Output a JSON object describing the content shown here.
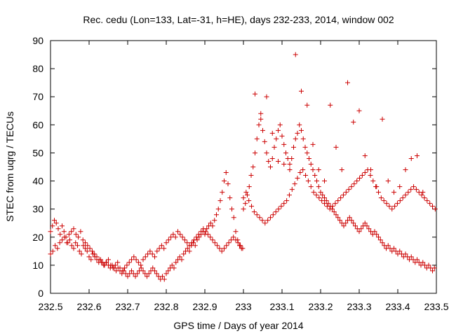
{
  "chart_data": {
    "type": "scatter",
    "title": "Rec. cedu (Lon=133, Lat=-31, h=HE), days 232-233, 2014, window 002",
    "xlabel": "GPS time / Days of year 2014",
    "ylabel": "STEC from uqrg / TECUs",
    "xlim": [
      232.5,
      233.5
    ],
    "ylim": [
      0,
      90
    ],
    "xticks": [
      "232.5",
      "232.6",
      "232.7",
      "232.8",
      "232.9",
      "233",
      "233.1",
      "233.2",
      "233.3",
      "233.4",
      "233.5"
    ],
    "yticks": [
      "0",
      "10",
      "20",
      "30",
      "40",
      "50",
      "60",
      "70",
      "80",
      "90"
    ],
    "grid": false,
    "legend": "none",
    "marker": "+",
    "color": "#cc0000",
    "x": [
      232.5,
      232.505,
      232.51,
      232.515,
      232.52,
      232.525,
      232.53,
      232.535,
      232.54,
      232.545,
      232.55,
      232.555,
      232.56,
      232.565,
      232.57,
      232.575,
      232.58,
      232.585,
      232.59,
      232.595,
      232.6,
      232.605,
      232.61,
      232.615,
      232.62,
      232.625,
      232.63,
      232.635,
      232.64,
      232.645,
      232.65,
      232.655,
      232.66,
      232.665,
      232.67,
      232.675,
      232.68,
      232.685,
      232.69,
      232.695,
      232.7,
      232.705,
      232.71,
      232.715,
      232.72,
      232.725,
      232.73,
      232.735,
      232.74,
      232.745,
      232.75,
      232.755,
      232.76,
      232.765,
      232.77,
      232.775,
      232.78,
      232.785,
      232.79,
      232.795,
      232.8,
      232.805,
      232.81,
      232.815,
      232.82,
      232.825,
      232.83,
      232.835,
      232.84,
      232.845,
      232.85,
      232.855,
      232.86,
      232.865,
      232.87,
      232.875,
      232.88,
      232.885,
      232.89,
      232.895,
      232.9,
      232.905,
      232.91,
      232.915,
      232.92,
      232.925,
      232.93,
      232.935,
      232.94,
      232.945,
      232.95,
      232.955,
      232.96,
      232.965,
      232.97,
      232.975,
      232.98,
      232.985,
      232.99,
      232.995,
      232.5,
      232.506,
      232.512,
      232.518,
      232.524,
      232.53,
      232.536,
      232.542,
      232.548,
      232.554,
      232.56,
      232.566,
      232.572,
      232.578,
      232.584,
      232.59,
      232.596,
      232.602,
      232.608,
      232.614,
      232.62,
      232.626,
      232.632,
      232.638,
      232.644,
      232.65,
      232.656,
      232.662,
      232.668,
      232.674,
      232.68,
      232.686,
      232.692,
      232.698,
      232.704,
      232.71,
      232.716,
      232.722,
      232.728,
      232.734,
      232.74,
      232.746,
      232.752,
      232.758,
      232.764,
      232.77,
      232.776,
      232.782,
      232.788,
      232.794,
      232.8,
      232.806,
      232.812,
      232.818,
      232.824,
      232.83,
      232.836,
      232.842,
      232.848,
      232.854,
      232.86,
      232.866,
      232.872,
      232.878,
      232.884,
      232.89,
      232.896,
      232.902,
      232.908,
      232.914,
      232.92,
      232.926,
      232.932,
      232.938,
      232.944,
      232.95,
      232.956,
      232.962,
      232.968,
      232.974,
      232.98,
      232.986,
      232.992,
      232.998,
      233.0,
      233.005,
      233.01,
      233.015,
      233.02,
      233.025,
      233.03,
      233.035,
      233.04,
      233.045,
      233.05,
      233.055,
      233.06,
      233.065,
      233.07,
      233.075,
      233.08,
      233.085,
      233.09,
      233.095,
      233.1,
      233.105,
      233.11,
      233.115,
      233.12,
      233.125,
      233.13,
      233.135,
      233.14,
      233.145,
      233.15,
      233.155,
      233.16,
      233.165,
      233.17,
      233.175,
      233.18,
      233.185,
      233.19,
      233.195,
      233.2,
      233.205,
      233.21,
      233.215,
      233.22,
      233.225,
      233.23,
      233.235,
      233.24,
      233.245,
      233.25,
      233.255,
      233.26,
      233.265,
      233.27,
      233.275,
      233.28,
      233.285,
      233.29,
      233.295,
      233.3,
      233.305,
      233.31,
      233.315,
      233.32,
      233.325,
      233.33,
      233.335,
      233.34,
      233.345,
      233.35,
      233.355,
      233.36,
      233.365,
      233.37,
      233.375,
      233.38,
      233.385,
      233.39,
      233.395,
      233.4,
      233.405,
      233.41,
      233.415,
      233.42,
      233.425,
      233.43,
      233.435,
      233.44,
      233.445,
      233.45,
      233.455,
      233.46,
      233.465,
      233.47,
      233.475,
      233.48,
      233.485,
      233.49,
      233.495,
      233.0,
      233.007,
      233.014,
      233.021,
      233.028,
      233.035,
      233.042,
      233.049,
      233.056,
      233.063,
      233.07,
      233.077,
      233.084,
      233.091,
      233.098,
      233.105,
      233.112,
      233.119,
      233.126,
      233.133,
      233.14,
      233.147,
      233.154,
      233.161,
      233.168,
      233.175,
      233.182,
      233.189,
      233.196,
      233.203,
      233.21,
      233.217,
      233.224,
      233.231,
      233.238,
      233.245,
      233.252,
      233.259,
      233.266,
      233.273,
      233.28,
      233.287,
      233.294,
      233.301,
      233.308,
      233.315,
      233.322,
      233.329,
      233.336,
      233.343,
      233.35,
      233.357,
      233.364,
      233.371,
      233.378,
      233.385,
      233.392,
      233.399,
      233.406,
      233.413,
      233.42,
      233.427,
      233.434,
      233.441,
      233.448,
      233.455,
      233.462,
      233.469,
      233.476,
      233.483,
      233.49,
      233.497,
      233.03,
      233.045,
      233.06,
      233.075,
      233.09,
      233.105,
      233.12,
      233.135,
      233.15,
      233.165,
      233.18,
      233.195,
      233.21,
      233.225,
      233.24,
      233.255,
      233.27,
      233.285,
      233.3,
      233.315,
      233.33,
      233.345,
      233.36,
      233.375,
      233.39,
      233.405,
      233.42,
      233.435,
      233.45,
      233.465
    ],
    "y": [
      22,
      24,
      26,
      25,
      23,
      21,
      24,
      22,
      20,
      18,
      19,
      17,
      16,
      18,
      17,
      15,
      14,
      17,
      16,
      15,
      13,
      12,
      14,
      13,
      12,
      11,
      12,
      11,
      10,
      11,
      10,
      9,
      10,
      9,
      8,
      9,
      8,
      7,
      8,
      7,
      6,
      7,
      8,
      7,
      6,
      7,
      8,
      9,
      8,
      7,
      6,
      7,
      8,
      9,
      8,
      7,
      6,
      5,
      6,
      5,
      7,
      8,
      9,
      10,
      9,
      11,
      12,
      13,
      12,
      14,
      15,
      16,
      15,
      17,
      18,
      17,
      19,
      20,
      21,
      22,
      21,
      23,
      24,
      25,
      24,
      26,
      28,
      30,
      33,
      36,
      40,
      43,
      39,
      34,
      30,
      27,
      22,
      19,
      17,
      16,
      14,
      15,
      17,
      16,
      18,
      19,
      20,
      18,
      21,
      22,
      23,
      21,
      20,
      22,
      19,
      18,
      17,
      16,
      15,
      14,
      13,
      12,
      11,
      10,
      11,
      12,
      10,
      9,
      10,
      11,
      9,
      8,
      9,
      10,
      11,
      12,
      13,
      12,
      11,
      10,
      12,
      13,
      14,
      15,
      14,
      13,
      15,
      16,
      17,
      16,
      18,
      19,
      20,
      21,
      20,
      22,
      21,
      20,
      19,
      18,
      17,
      18,
      19,
      20,
      21,
      22,
      23,
      22,
      21,
      20,
      19,
      18,
      17,
      16,
      15,
      16,
      17,
      18,
      19,
      20,
      19,
      18,
      17,
      16,
      30,
      32,
      35,
      38,
      42,
      45,
      50,
      55,
      60,
      62,
      58,
      54,
      50,
      47,
      45,
      48,
      52,
      55,
      58,
      60,
      56,
      53,
      50,
      48,
      46,
      48,
      52,
      55,
      57,
      60,
      58,
      55,
      52,
      50,
      48,
      46,
      44,
      42,
      40,
      38,
      36,
      35,
      34,
      33,
      32,
      31,
      30,
      29,
      28,
      27,
      26,
      25,
      24,
      25,
      26,
      27,
      26,
      25,
      24,
      23,
      22,
      23,
      24,
      25,
      24,
      23,
      22,
      21,
      22,
      21,
      20,
      19,
      18,
      17,
      16,
      17,
      16,
      15,
      16,
      15,
      14,
      15,
      14,
      13,
      14,
      13,
      12,
      13,
      12,
      11,
      12,
      11,
      10,
      11,
      10,
      9,
      10,
      9,
      8,
      9,
      34,
      36,
      33,
      31,
      29,
      28,
      27,
      26,
      25,
      26,
      27,
      28,
      29,
      30,
      31,
      32,
      33,
      35,
      37,
      39,
      41,
      43,
      44,
      42,
      40,
      38,
      36,
      35,
      34,
      33,
      32,
      31,
      30,
      31,
      32,
      33,
      34,
      35,
      36,
      37,
      38,
      39,
      40,
      41,
      42,
      43,
      44,
      42,
      40,
      38,
      36,
      34,
      33,
      32,
      31,
      30,
      31,
      32,
      33,
      34,
      35,
      36,
      37,
      38,
      37,
      36,
      35,
      34,
      33,
      32,
      31,
      30,
      71,
      64,
      70,
      57,
      47,
      46,
      44,
      85,
      72,
      67,
      53,
      44,
      40,
      67,
      52,
      44,
      75,
      61,
      65,
      49,
      44,
      38,
      62,
      40,
      36,
      38,
      44,
      48,
      49,
      36
    ]
  }
}
